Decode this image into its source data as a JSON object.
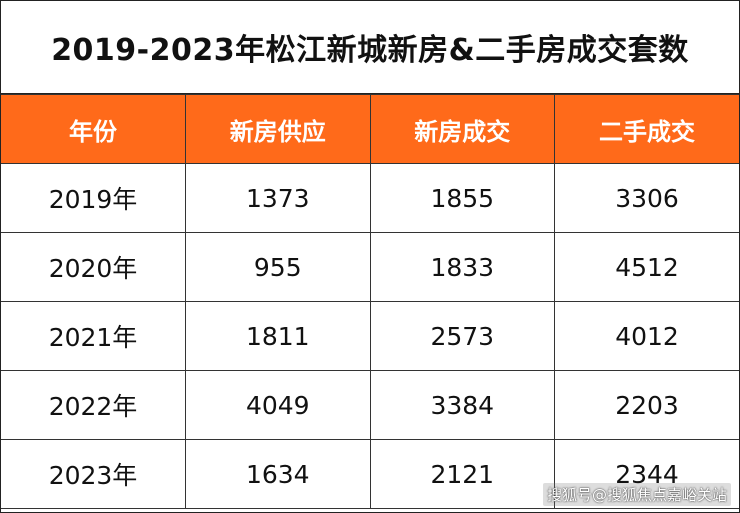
{
  "title": "2019-2023年松江新城新房&二手房成交套数",
  "colors": {
    "header_bg": "#ff6a1a",
    "header_text": "#ffffff",
    "border": "#333333"
  },
  "table": {
    "headers": [
      "年份",
      "新房供应",
      "新房成交",
      "二手成交"
    ],
    "rows": [
      [
        "2019年",
        "1373",
        "1855",
        "3306"
      ],
      [
        "2020年",
        "955",
        "1833",
        "4512"
      ],
      [
        "2021年",
        "1811",
        "2573",
        "4012"
      ],
      [
        "2022年",
        "4049",
        "3384",
        "2203"
      ],
      [
        "2023年",
        "1634",
        "2121",
        "2344"
      ]
    ]
  },
  "watermark": "搜狐号@搜狐焦点嘉峪关站"
}
